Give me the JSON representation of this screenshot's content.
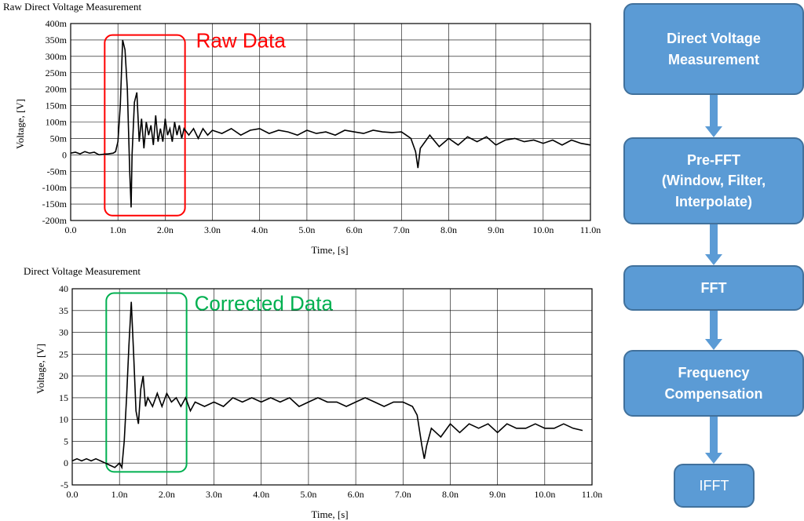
{
  "chart_data": [
    {
      "type": "line",
      "title": "Raw Direct Voltage Measurement",
      "xlabel": "Time, [s]",
      "ylabel": "Voltage, [V]",
      "xlim": [
        0.0,
        11.0
      ],
      "ylim": [
        -200,
        400
      ],
      "xticks": [
        0,
        1,
        2,
        3,
        4,
        5,
        6,
        7,
        8,
        9,
        10,
        11
      ],
      "xtick_labels": [
        "0.0",
        "1.0n",
        "2.0n",
        "3.0n",
        "4.0n",
        "5.0n",
        "6.0n",
        "7.0n",
        "8.0n",
        "9.0n",
        "10.0n",
        "11.0n"
      ],
      "yticks": [
        -200,
        -150,
        -100,
        -50,
        0,
        50,
        100,
        150,
        200,
        250,
        300,
        350,
        400
      ],
      "ytick_labels": [
        "-200m",
        "-150m",
        "-100m",
        "-50m",
        "0",
        "50m",
        "100m",
        "150m",
        "200m",
        "250m",
        "300m",
        "350m",
        "400m"
      ],
      "grid": true,
      "annotation": {
        "label": "Raw Data",
        "color": "#ff0000",
        "x_range": [
          0.72,
          2.42
        ],
        "y_range": [
          -185,
          365
        ]
      },
      "series": [
        {
          "x": [
            0.0,
            0.1,
            0.2,
            0.3,
            0.4,
            0.5,
            0.6,
            0.7,
            0.8,
            0.9,
            0.95,
            1.0,
            1.05,
            1.1,
            1.15,
            1.2,
            1.25,
            1.28,
            1.3,
            1.35,
            1.4,
            1.45,
            1.5,
            1.55,
            1.6,
            1.65,
            1.7,
            1.75,
            1.8,
            1.85,
            1.9,
            1.95,
            2.0,
            2.05,
            2.1,
            2.15,
            2.2,
            2.25,
            2.3,
            2.35,
            2.4,
            2.5,
            2.6,
            2.7,
            2.8,
            2.9,
            3.0,
            3.2,
            3.4,
            3.6,
            3.8,
            4.0,
            4.2,
            4.4,
            4.6,
            4.8,
            5.0,
            5.2,
            5.4,
            5.6,
            5.8,
            6.0,
            6.2,
            6.4,
            6.6,
            6.8,
            7.0,
            7.1,
            7.2,
            7.3,
            7.35,
            7.4,
            7.5,
            7.6,
            7.8,
            8.0,
            8.2,
            8.4,
            8.6,
            8.8,
            9.0,
            9.2,
            9.4,
            9.6,
            9.8,
            10.0,
            10.2,
            10.4,
            10.6,
            10.8,
            11.0
          ],
          "y": [
            5,
            8,
            3,
            10,
            5,
            8,
            0,
            2,
            3,
            5,
            10,
            40,
            150,
            350,
            320,
            200,
            -50,
            -160,
            0,
            160,
            190,
            40,
            110,
            20,
            100,
            60,
            90,
            30,
            120,
            40,
            80,
            40,
            110,
            60,
            80,
            40,
            100,
            60,
            90,
            50,
            80,
            60,
            80,
            50,
            80,
            60,
            75,
            65,
            80,
            60,
            75,
            80,
            65,
            75,
            70,
            60,
            75,
            65,
            70,
            60,
            75,
            70,
            65,
            75,
            70,
            68,
            70,
            60,
            50,
            10,
            -40,
            20,
            40,
            60,
            25,
            50,
            30,
            55,
            40,
            55,
            30,
            45,
            50,
            40,
            45,
            35,
            45,
            30,
            45,
            35,
            30
          ]
        }
      ]
    },
    {
      "type": "line",
      "title": "Direct Voltage Measurement",
      "xlabel": "Time, [s]",
      "ylabel": "Voltage, [V]",
      "xlim": [
        0.0,
        11.0
      ],
      "ylim": [
        -5,
        40
      ],
      "xticks": [
        0,
        1,
        2,
        3,
        4,
        5,
        6,
        7,
        8,
        9,
        10,
        11
      ],
      "xtick_labels": [
        "0.0",
        "1.0n",
        "2.0n",
        "3.0n",
        "4.0n",
        "5.0n",
        "6.0n",
        "7.0n",
        "8.0n",
        "9.0n",
        "10.0n",
        "11.0n"
      ],
      "yticks": [
        -5,
        0,
        5,
        10,
        15,
        20,
        25,
        30,
        35,
        40
      ],
      "ytick_labels": [
        "-5",
        "0",
        "5",
        "10",
        "15",
        "20",
        "25",
        "30",
        "35",
        "40"
      ],
      "grid": true,
      "annotation": {
        "label": "Corrected Data",
        "color": "#00b050",
        "x_range": [
          0.72,
          2.42
        ],
        "y_range": [
          -2,
          39
        ]
      },
      "series": [
        {
          "x": [
            0.0,
            0.1,
            0.2,
            0.3,
            0.4,
            0.5,
            0.6,
            0.7,
            0.8,
            0.9,
            1.0,
            1.05,
            1.1,
            1.15,
            1.2,
            1.25,
            1.3,
            1.35,
            1.4,
            1.45,
            1.5,
            1.55,
            1.6,
            1.7,
            1.8,
            1.9,
            2.0,
            2.1,
            2.2,
            2.3,
            2.4,
            2.5,
            2.6,
            2.8,
            3.0,
            3.2,
            3.4,
            3.6,
            3.8,
            4.0,
            4.2,
            4.4,
            4.6,
            4.8,
            5.0,
            5.2,
            5.4,
            5.6,
            5.8,
            6.0,
            6.2,
            6.4,
            6.6,
            6.8,
            7.0,
            7.2,
            7.3,
            7.4,
            7.45,
            7.5,
            7.6,
            7.8,
            8.0,
            8.2,
            8.4,
            8.6,
            8.8,
            9.0,
            9.2,
            9.4,
            9.6,
            9.8,
            10.0,
            10.2,
            10.4,
            10.6,
            10.8
          ],
          "y": [
            0.5,
            1,
            0.5,
            1,
            0.5,
            1,
            0.5,
            0,
            -0.5,
            -1,
            0,
            -1,
            5,
            15,
            27,
            37,
            25,
            12,
            9,
            17,
            20,
            13,
            15,
            13,
            16,
            13,
            16,
            14,
            15,
            13,
            15,
            12,
            14,
            13,
            14,
            13,
            15,
            14,
            15,
            14,
            15,
            14,
            15,
            13,
            14,
            15,
            14,
            14,
            13,
            14,
            15,
            14,
            13,
            14,
            14,
            13,
            11,
            4,
            1,
            4,
            8,
            6,
            9,
            7,
            9,
            8,
            9,
            7,
            9,
            8,
            8,
            9,
            8,
            8,
            9,
            8,
            7.5
          ]
        }
      ]
    }
  ],
  "flow": {
    "steps": [
      {
        "label": "Direct Voltage\nMeasurement"
      },
      {
        "label": "Pre-FFT\n(Window, Filter,\nInterpolate)"
      },
      {
        "label": "FFT"
      },
      {
        "label": "Frequency\nCompensation"
      },
      {
        "label": "IFFT"
      }
    ],
    "box_color": "#5b9bd5",
    "border_color": "#41719c"
  }
}
